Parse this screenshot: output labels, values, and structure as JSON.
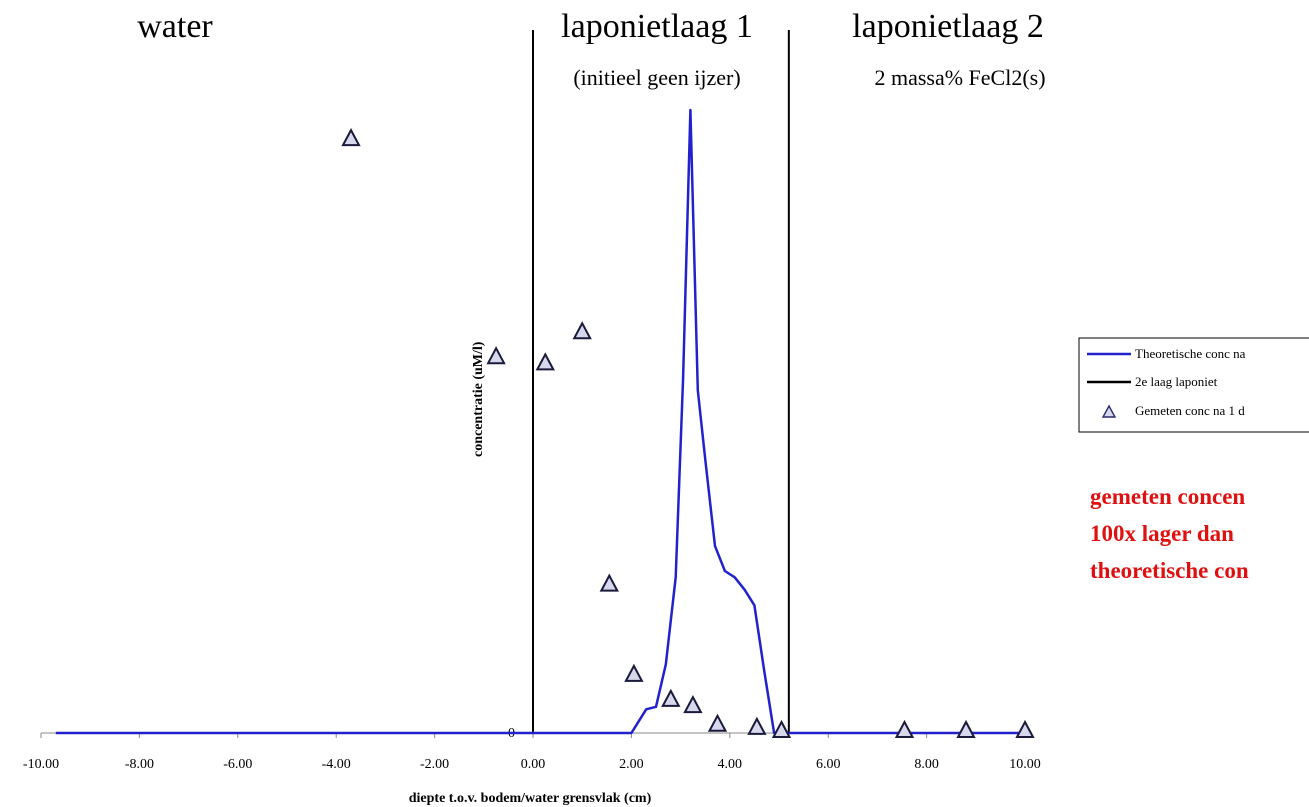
{
  "regions": [
    {
      "label": "water",
      "sub": ""
    },
    {
      "label": "laponietlaag 1",
      "sub": "(initieel geen ijzer)"
    },
    {
      "label": "laponietlaag 2",
      "sub": "2 massa% FeCl2(s)"
    }
  ],
  "note_lines": [
    "gemeten concen",
    "100x lager dan",
    "theoretische con"
  ],
  "colors": {
    "theory": "#2222cc",
    "boundary": "#000000",
    "measured_fill": "#d8d8ec",
    "note": "#e01010"
  },
  "chart_data": {
    "type": "line",
    "xlabel": "diepte t.o.v. bodem/water grensvlak (cm)",
    "ylabel": "concentratie (uM/l)",
    "xlim": [
      -10,
      10
    ],
    "ylim": [
      0,
      100
    ],
    "xticks": [
      -10,
      -8,
      -6,
      -4,
      -2,
      0,
      2,
      4,
      6,
      8,
      10
    ],
    "xtick_labels": [
      "-10.00",
      "-8.00",
      "-6.00",
      "-4.00",
      "-2.00",
      "0.00",
      "2.00",
      "4.00",
      "6.00",
      "8.00",
      "10.00"
    ],
    "ytick_labels": [
      "0"
    ],
    "boundaries_x": [
      0,
      5.2
    ],
    "series": [
      {
        "name": "Theoretische conc na",
        "kind": "line",
        "x": [
          -9.7,
          2.0,
          2.3,
          2.5,
          2.7,
          2.9,
          3.05,
          3.2,
          3.35,
          3.5,
          3.7,
          3.9,
          4.1,
          4.3,
          4.5,
          4.7,
          4.9,
          5.2,
          10.0
        ],
        "y": [
          0,
          0,
          3.8,
          4.2,
          11,
          25,
          57,
          100,
          55,
          44,
          30,
          26,
          25,
          23,
          20.5,
          10,
          0,
          0,
          0
        ]
      },
      {
        "name": "2e laag laponiet",
        "kind": "line",
        "x": [],
        "y": []
      },
      {
        "name": "Gemeten conc na 1 d",
        "kind": "scatter",
        "x": [
          -3.7,
          -0.75,
          0.25,
          1.0,
          1.55,
          2.05,
          2.8,
          3.25,
          3.75,
          4.55,
          5.05,
          7.55,
          8.8,
          10.0
        ],
        "y": [
          95,
          60,
          59,
          64,
          23.5,
          9,
          5,
          4,
          1,
          0.5,
          0,
          0,
          0,
          0
        ]
      }
    ]
  }
}
